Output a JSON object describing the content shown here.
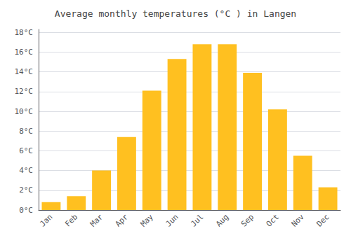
{
  "chart_data": {
    "type": "bar",
    "title": "Average monthly temperatures (°C ) in Langen",
    "categories": [
      "Jan",
      "Feb",
      "Mar",
      "Apr",
      "May",
      "Jun",
      "Jul",
      "Aug",
      "Sep",
      "Oct",
      "Nov",
      "Dec"
    ],
    "values": [
      0.8,
      1.4,
      4.0,
      7.4,
      12.1,
      15.3,
      16.8,
      16.8,
      13.9,
      10.2,
      5.5,
      2.3
    ],
    "color": "#FFC020",
    "ylim": [
      0,
      18.3
    ],
    "yticks": [
      {
        "value": 0,
        "label": "0°C"
      },
      {
        "value": 2,
        "label": "2°C"
      },
      {
        "value": 4,
        "label": "4°C"
      },
      {
        "value": 6,
        "label": "6°C"
      },
      {
        "value": 8,
        "label": "8°C"
      },
      {
        "value": 10,
        "label": "10°C"
      },
      {
        "value": 12,
        "label": "12°C"
      },
      {
        "value": 14,
        "label": "14°C"
      },
      {
        "value": 16,
        "label": "16°C"
      },
      {
        "value": 18,
        "label": "18°C"
      }
    ],
    "grid": true
  }
}
